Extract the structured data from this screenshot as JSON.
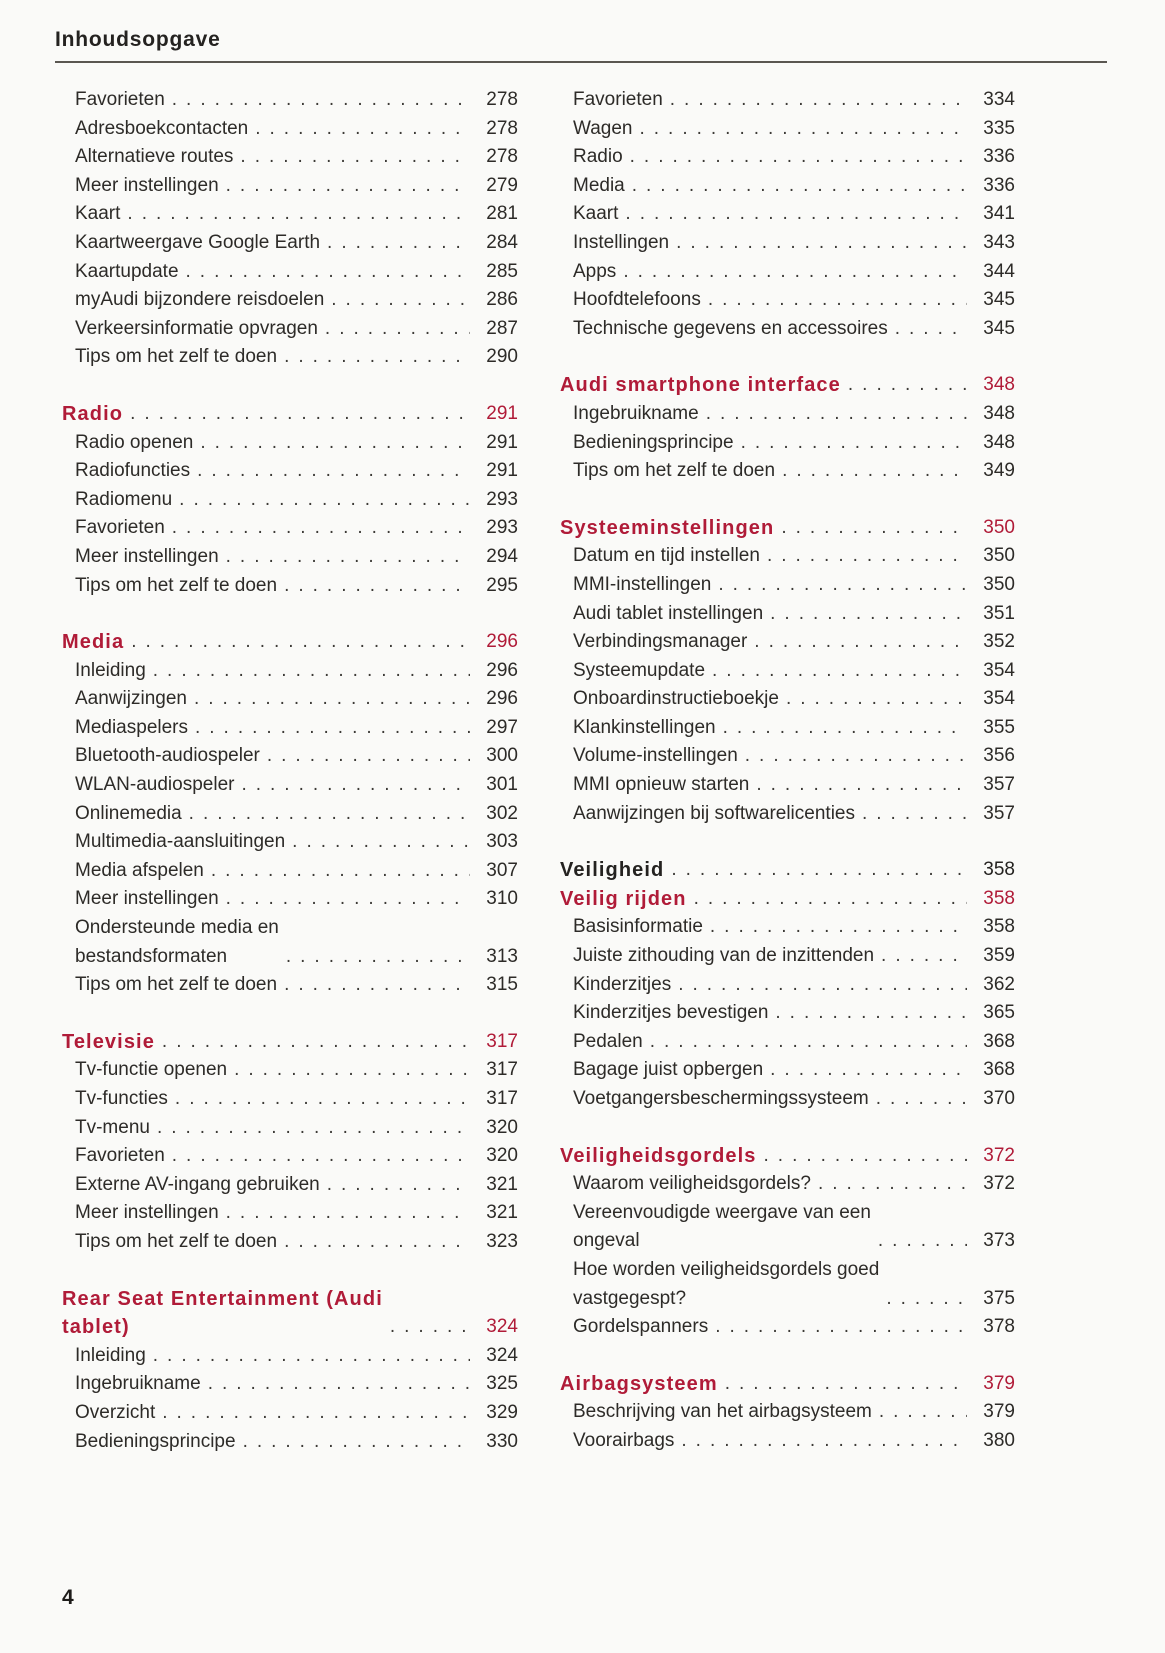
{
  "page": {
    "title": "Inhoudsopgave",
    "footer_page_number": "4"
  },
  "colors": {
    "accent_red": "#b01b38",
    "text": "#2d2b28"
  },
  "toc": {
    "columns": [
      {
        "side": "left",
        "sections": [
          {
            "spaced": false,
            "heading": null,
            "entries": [
              {
                "label": "Favorieten",
                "page": "278"
              },
              {
                "label": "Adresboekcontacten",
                "page": "278"
              },
              {
                "label": "Alternatieve routes",
                "page": "278"
              },
              {
                "label": "Meer instellingen",
                "page": "279"
              },
              {
                "label": "Kaart",
                "page": "281"
              },
              {
                "label": "Kaartweergave Google Earth",
                "page": "284"
              },
              {
                "label": "Kaartupdate",
                "page": "285"
              },
              {
                "label": "myAudi bijzondere reisdoelen",
                "page": "286"
              },
              {
                "label": "Verkeersinformatie opvragen",
                "page": "287"
              },
              {
                "label": "Tips om het zelf te doen",
                "page": "290"
              }
            ]
          },
          {
            "spaced": true,
            "heading": {
              "label": "Radio",
              "page": "291",
              "style": "red"
            },
            "entries": [
              {
                "label": "Radio openen",
                "page": "291"
              },
              {
                "label": "Radiofuncties",
                "page": "291"
              },
              {
                "label": "Radiomenu",
                "page": "293"
              },
              {
                "label": "Favorieten",
                "page": "293"
              },
              {
                "label": "Meer instellingen",
                "page": "294"
              },
              {
                "label": "Tips om het zelf te doen",
                "page": "295"
              }
            ]
          },
          {
            "spaced": true,
            "heading": {
              "label": "Media",
              "page": "296",
              "style": "red"
            },
            "entries": [
              {
                "label": "Inleiding",
                "page": "296"
              },
              {
                "label": "Aanwijzingen",
                "page": "296"
              },
              {
                "label": "Mediaspelers",
                "page": "297"
              },
              {
                "label": "Bluetooth-audiospeler",
                "page": "300"
              },
              {
                "label": "WLAN-audiospeler",
                "page": "301"
              },
              {
                "label": "Onlinemedia",
                "page": "302"
              },
              {
                "label": "Multimedia-aansluitingen",
                "page": "303"
              },
              {
                "label": "Media afspelen",
                "page": "307"
              },
              {
                "label": "Meer instellingen",
                "page": "310"
              },
              {
                "label": "Ondersteunde media en\nbestandsformaten",
                "page": "313"
              },
              {
                "label": "Tips om het zelf te doen",
                "page": "315"
              }
            ]
          },
          {
            "spaced": true,
            "heading": {
              "label": "Televisie",
              "page": "317",
              "style": "red"
            },
            "entries": [
              {
                "label": "Tv-functie openen",
                "page": "317"
              },
              {
                "label": "Tv-functies",
                "page": "317"
              },
              {
                "label": "Tv-menu",
                "page": "320"
              },
              {
                "label": "Favorieten",
                "page": "320"
              },
              {
                "label": "Externe AV-ingang gebruiken",
                "page": "321"
              },
              {
                "label": "Meer instellingen",
                "page": "321"
              },
              {
                "label": "Tips om het zelf te doen",
                "page": "323"
              }
            ]
          },
          {
            "spaced": true,
            "heading": {
              "label": "Rear Seat Entertainment (Audi\ntablet)",
              "page": "324",
              "style": "red"
            },
            "entries": [
              {
                "label": "Inleiding",
                "page": "324"
              },
              {
                "label": "Ingebruikname",
                "page": "325"
              },
              {
                "label": "Overzicht",
                "page": "329"
              },
              {
                "label": "Bedieningsprincipe",
                "page": "330"
              }
            ]
          }
        ]
      },
      {
        "side": "right",
        "sections": [
          {
            "spaced": false,
            "heading": null,
            "entries": [
              {
                "label": "Favorieten",
                "page": "334"
              },
              {
                "label": "Wagen",
                "page": "335"
              },
              {
                "label": "Radio",
                "page": "336"
              },
              {
                "label": "Media",
                "page": "336"
              },
              {
                "label": "Kaart",
                "page": "341"
              },
              {
                "label": "Instellingen",
                "page": "343"
              },
              {
                "label": "Apps",
                "page": "344"
              },
              {
                "label": "Hoofdtelefoons",
                "page": "345"
              },
              {
                "label": "Technische gegevens en accessoires",
                "page": "345"
              }
            ]
          },
          {
            "spaced": true,
            "heading": {
              "label": "Audi smartphone interface",
              "page": "348",
              "style": "red"
            },
            "entries": [
              {
                "label": "Ingebruikname",
                "page": "348"
              },
              {
                "label": "Bedieningsprincipe",
                "page": "348"
              },
              {
                "label": "Tips om het zelf te doen",
                "page": "349"
              }
            ]
          },
          {
            "spaced": true,
            "heading": {
              "label": "Systeeminstellingen",
              "page": "350",
              "style": "red"
            },
            "entries": [
              {
                "label": "Datum en tijd instellen",
                "page": "350"
              },
              {
                "label": "MMI-instellingen",
                "page": "350"
              },
              {
                "label": "Audi tablet instellingen",
                "page": "351"
              },
              {
                "label": "Verbindingsmanager",
                "page": "352"
              },
              {
                "label": "Systeemupdate",
                "page": "354"
              },
              {
                "label": "Onboardinstructieboekje",
                "page": "354"
              },
              {
                "label": "Klankinstellingen",
                "page": "355"
              },
              {
                "label": "Volume-instellingen",
                "page": "356"
              },
              {
                "label": "MMI opnieuw starten",
                "page": "357"
              },
              {
                "label": "Aanwijzingen bij softwarelicenties",
                "page": "357"
              }
            ]
          },
          {
            "spaced": true,
            "heading": {
              "label": "Veiligheid",
              "page": "358",
              "style": "black"
            },
            "entries": []
          },
          {
            "spaced": false,
            "heading": {
              "label": "Veilig rijden",
              "page": "358",
              "style": "red"
            },
            "entries": [
              {
                "label": "Basisinformatie",
                "page": "358"
              },
              {
                "label": "Juiste zithouding van de inzittenden",
                "page": "359"
              },
              {
                "label": "Kinderzitjes",
                "page": "362"
              },
              {
                "label": "Kinderzitjes bevestigen",
                "page": "365"
              },
              {
                "label": "Pedalen",
                "page": "368"
              },
              {
                "label": "Bagage juist opbergen",
                "page": "368"
              },
              {
                "label": "Voetgangersbeschermingssysteem",
                "page": "370"
              }
            ]
          },
          {
            "spaced": true,
            "heading": {
              "label": "Veiligheidsgordels",
              "page": "372",
              "style": "red"
            },
            "entries": [
              {
                "label": "Waarom veiligheidsgordels?",
                "page": "372"
              },
              {
                "label": "Vereenvoudigde weergave van een\nongeval",
                "page": "373"
              },
              {
                "label": "Hoe worden veiligheidsgordels goed\nvastgegespt?",
                "page": "375"
              },
              {
                "label": "Gordelspanners",
                "page": "378"
              }
            ]
          },
          {
            "spaced": true,
            "heading": {
              "label": "Airbagsysteem",
              "page": "379",
              "style": "red"
            },
            "entries": [
              {
                "label": "Beschrijving van het airbagsysteem",
                "page": "379"
              },
              {
                "label": "Voorairbags",
                "page": "380"
              }
            ]
          }
        ]
      }
    ]
  }
}
